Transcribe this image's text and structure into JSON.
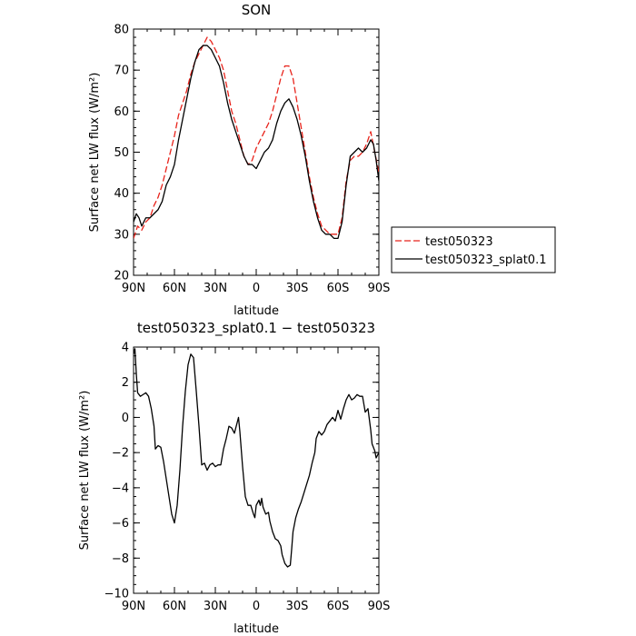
{
  "chart_data": [
    {
      "type": "line",
      "title": "SON",
      "xlabel": "latitude",
      "ylabel": "Surface net LW flux (W/m²)",
      "xlim": [
        90,
        -90
      ],
      "ylim": [
        20,
        80
      ],
      "x_ticks": [
        90,
        60,
        30,
        0,
        -30,
        -60,
        -90
      ],
      "x_tick_labels": [
        "90N",
        "60N",
        "30N",
        "0",
        "30S",
        "60S",
        "90S"
      ],
      "y_ticks": [
        20,
        30,
        40,
        50,
        60,
        70,
        80
      ],
      "y_tick_labels": [
        "20",
        "30",
        "40",
        "50",
        "60",
        "70",
        "80"
      ],
      "legend_position": "right",
      "series": [
        {
          "name": "test050323",
          "color": "#e8231b",
          "dash": "dashed",
          "points": [
            [
              90,
              29
            ],
            [
              87,
              32
            ],
            [
              84,
              31
            ],
            [
              81,
              33
            ],
            [
              78,
              34
            ],
            [
              75,
              37
            ],
            [
              72,
              39
            ],
            [
              69,
              42
            ],
            [
              66,
              46
            ],
            [
              63,
              50
            ],
            [
              60,
              54
            ],
            [
              57,
              59
            ],
            [
              54,
              62
            ],
            [
              51,
              65
            ],
            [
              48,
              69
            ],
            [
              45,
              72
            ],
            [
              42,
              74
            ],
            [
              39,
              76
            ],
            [
              36,
              78
            ],
            [
              33,
              77
            ],
            [
              30,
              75
            ],
            [
              27,
              73
            ],
            [
              24,
              70
            ],
            [
              21,
              65
            ],
            [
              18,
              60
            ],
            [
              15,
              57
            ],
            [
              12,
              53
            ],
            [
              9,
              49
            ],
            [
              6,
              47
            ],
            [
              3,
              48
            ],
            [
              0,
              51
            ],
            [
              -3,
              53
            ],
            [
              -6,
              55
            ],
            [
              -9,
              57
            ],
            [
              -12,
              60
            ],
            [
              -15,
              64
            ],
            [
              -18,
              68
            ],
            [
              -21,
              71
            ],
            [
              -24,
              71
            ],
            [
              -27,
              68
            ],
            [
              -30,
              62
            ],
            [
              -33,
              56
            ],
            [
              -36,
              50
            ],
            [
              -39,
              44
            ],
            [
              -42,
              39
            ],
            [
              -45,
              35
            ],
            [
              -48,
              32
            ],
            [
              -51,
              31
            ],
            [
              -54,
              30
            ],
            [
              -57,
              30
            ],
            [
              -60,
              30
            ],
            [
              -63,
              34
            ],
            [
              -66,
              43
            ],
            [
              -69,
              48
            ],
            [
              -72,
              49
            ],
            [
              -75,
              49
            ],
            [
              -78,
              50
            ],
            [
              -81,
              52
            ],
            [
              -84,
              55
            ],
            [
              -87,
              50
            ],
            [
              -90,
              45
            ]
          ]
        },
        {
          "name": "test050323_splat0.1",
          "color": "#000000",
          "dash": "solid",
          "points": [
            [
              90,
              33
            ],
            [
              88,
              35
            ],
            [
              86,
              34
            ],
            [
              84,
              32
            ],
            [
              81,
              34
            ],
            [
              78,
              34
            ],
            [
              75,
              35
            ],
            [
              72,
              36
            ],
            [
              69,
              38
            ],
            [
              66,
              42
            ],
            [
              63,
              44
            ],
            [
              60,
              47
            ],
            [
              57,
              53
            ],
            [
              54,
              58
            ],
            [
              51,
              63
            ],
            [
              48,
              68
            ],
            [
              45,
              72
            ],
            [
              42,
              75
            ],
            [
              39,
              76
            ],
            [
              36,
              76
            ],
            [
              33,
              75
            ],
            [
              30,
              73
            ],
            [
              27,
              71
            ],
            [
              24,
              67
            ],
            [
              21,
              62
            ],
            [
              18,
              58
            ],
            [
              15,
              55
            ],
            [
              12,
              52
            ],
            [
              9,
              49
            ],
            [
              6,
              47
            ],
            [
              3,
              47
            ],
            [
              0,
              46
            ],
            [
              -3,
              48
            ],
            [
              -6,
              50
            ],
            [
              -9,
              51
            ],
            [
              -12,
              53
            ],
            [
              -15,
              57
            ],
            [
              -18,
              60
            ],
            [
              -21,
              62
            ],
            [
              -24,
              63
            ],
            [
              -27,
              61
            ],
            [
              -30,
              58
            ],
            [
              -33,
              54
            ],
            [
              -36,
              49
            ],
            [
              -39,
              43
            ],
            [
              -42,
              38
            ],
            [
              -45,
              34
            ],
            [
              -48,
              31
            ],
            [
              -51,
              30
            ],
            [
              -54,
              30
            ],
            [
              -57,
              29
            ],
            [
              -60,
              29
            ],
            [
              -63,
              33
            ],
            [
              -66,
              42
            ],
            [
              -69,
              49
            ],
            [
              -72,
              50
            ],
            [
              -75,
              51
            ],
            [
              -78,
              50
            ],
            [
              -81,
              51
            ],
            [
              -84,
              53
            ],
            [
              -86,
              52
            ],
            [
              -88,
              48
            ],
            [
              -90,
              43
            ]
          ]
        }
      ]
    },
    {
      "type": "line",
      "title": "test050323_splat0.1 − test050323",
      "xlabel": "latitude",
      "ylabel": "Surface net LW flux (W/m²)",
      "xlim": [
        90,
        -90
      ],
      "ylim": [
        -10,
        4
      ],
      "x_ticks": [
        90,
        60,
        30,
        0,
        -30,
        -60,
        -90
      ],
      "x_tick_labels": [
        "90N",
        "60N",
        "30N",
        "0",
        "30S",
        "60S",
        "90S"
      ],
      "y_ticks": [
        -10,
        -8,
        -6,
        -4,
        -2,
        0,
        2,
        4
      ],
      "y_tick_labels": [
        "−10",
        "−8",
        "−6",
        "−4",
        "−2",
        "0",
        "2",
        "4"
      ],
      "series": [
        {
          "color": "#000000",
          "dash": "solid",
          "points": [
            [
              90,
              3.6
            ],
            [
              89,
              3.9
            ],
            [
              88,
              2.5
            ],
            [
              87,
              1.4
            ],
            [
              85,
              1.2
            ],
            [
              83,
              1.3
            ],
            [
              81,
              1.4
            ],
            [
              79,
              1.2
            ],
            [
              77,
              0.5
            ],
            [
              75,
              -0.5
            ],
            [
              74,
              -1.8
            ],
            [
              72,
              -1.6
            ],
            [
              70,
              -1.7
            ],
            [
              68,
              -2.5
            ],
            [
              66,
              -3.5
            ],
            [
              64,
              -4.5
            ],
            [
              62,
              -5.5
            ],
            [
              60,
              -6.0
            ],
            [
              58,
              -5.0
            ],
            [
              56,
              -3.0
            ],
            [
              54,
              -0.5
            ],
            [
              52,
              1.5
            ],
            [
              50,
              3.0
            ],
            [
              48,
              3.6
            ],
            [
              46,
              3.4
            ],
            [
              44,
              1.5
            ],
            [
              42,
              -0.5
            ],
            [
              40,
              -2.7
            ],
            [
              38,
              -2.6
            ],
            [
              36,
              -3.0
            ],
            [
              34,
              -2.7
            ],
            [
              32,
              -2.6
            ],
            [
              30,
              -2.8
            ],
            [
              28,
              -2.7
            ],
            [
              26,
              -2.7
            ],
            [
              24,
              -1.8
            ],
            [
              22,
              -1.2
            ],
            [
              20,
              -0.5
            ],
            [
              18,
              -0.6
            ],
            [
              16,
              -0.9
            ],
            [
              14,
              -0.3
            ],
            [
              13,
              0.0
            ],
            [
              12,
              -0.8
            ],
            [
              10,
              -2.8
            ],
            [
              8,
              -4.5
            ],
            [
              6,
              -5.0
            ],
            [
              4,
              -5.0
            ],
            [
              2,
              -5.5
            ],
            [
              1,
              -5.7
            ],
            [
              0,
              -5.0
            ],
            [
              -2,
              -4.7
            ],
            [
              -3,
              -5.0
            ],
            [
              -4,
              -4.6
            ],
            [
              -5,
              -5.1
            ],
            [
              -7,
              -5.5
            ],
            [
              -9,
              -5.4
            ],
            [
              -10,
              -5.9
            ],
            [
              -12,
              -6.5
            ],
            [
              -14,
              -6.9
            ],
            [
              -16,
              -7.0
            ],
            [
              -18,
              -7.3
            ],
            [
              -19,
              -7.8
            ],
            [
              -21,
              -8.3
            ],
            [
              -23,
              -8.5
            ],
            [
              -25,
              -8.4
            ],
            [
              -26,
              -7.5
            ],
            [
              -27,
              -6.5
            ],
            [
              -29,
              -5.7
            ],
            [
              -31,
              -5.2
            ],
            [
              -33,
              -4.8
            ],
            [
              -35,
              -4.3
            ],
            [
              -37,
              -3.8
            ],
            [
              -39,
              -3.3
            ],
            [
              -41,
              -2.6
            ],
            [
              -43,
              -2.0
            ],
            [
              -44,
              -1.2
            ],
            [
              -46,
              -0.8
            ],
            [
              -48,
              -1.0
            ],
            [
              -50,
              -0.8
            ],
            [
              -52,
              -0.4
            ],
            [
              -54,
              -0.2
            ],
            [
              -56,
              0.0
            ],
            [
              -58,
              -0.2
            ],
            [
              -60,
              0.4
            ],
            [
              -62,
              -0.1
            ],
            [
              -64,
              0.5
            ],
            [
              -66,
              1.0
            ],
            [
              -68,
              1.3
            ],
            [
              -70,
              1.0
            ],
            [
              -72,
              1.1
            ],
            [
              -74,
              1.3
            ],
            [
              -76,
              1.2
            ],
            [
              -78,
              1.2
            ],
            [
              -80,
              0.3
            ],
            [
              -82,
              0.5
            ],
            [
              -84,
              -0.7
            ],
            [
              -85,
              -1.5
            ],
            [
              -87,
              -1.9
            ],
            [
              -88,
              -2.3
            ],
            [
              -90,
              -2.0
            ]
          ]
        }
      ]
    }
  ]
}
